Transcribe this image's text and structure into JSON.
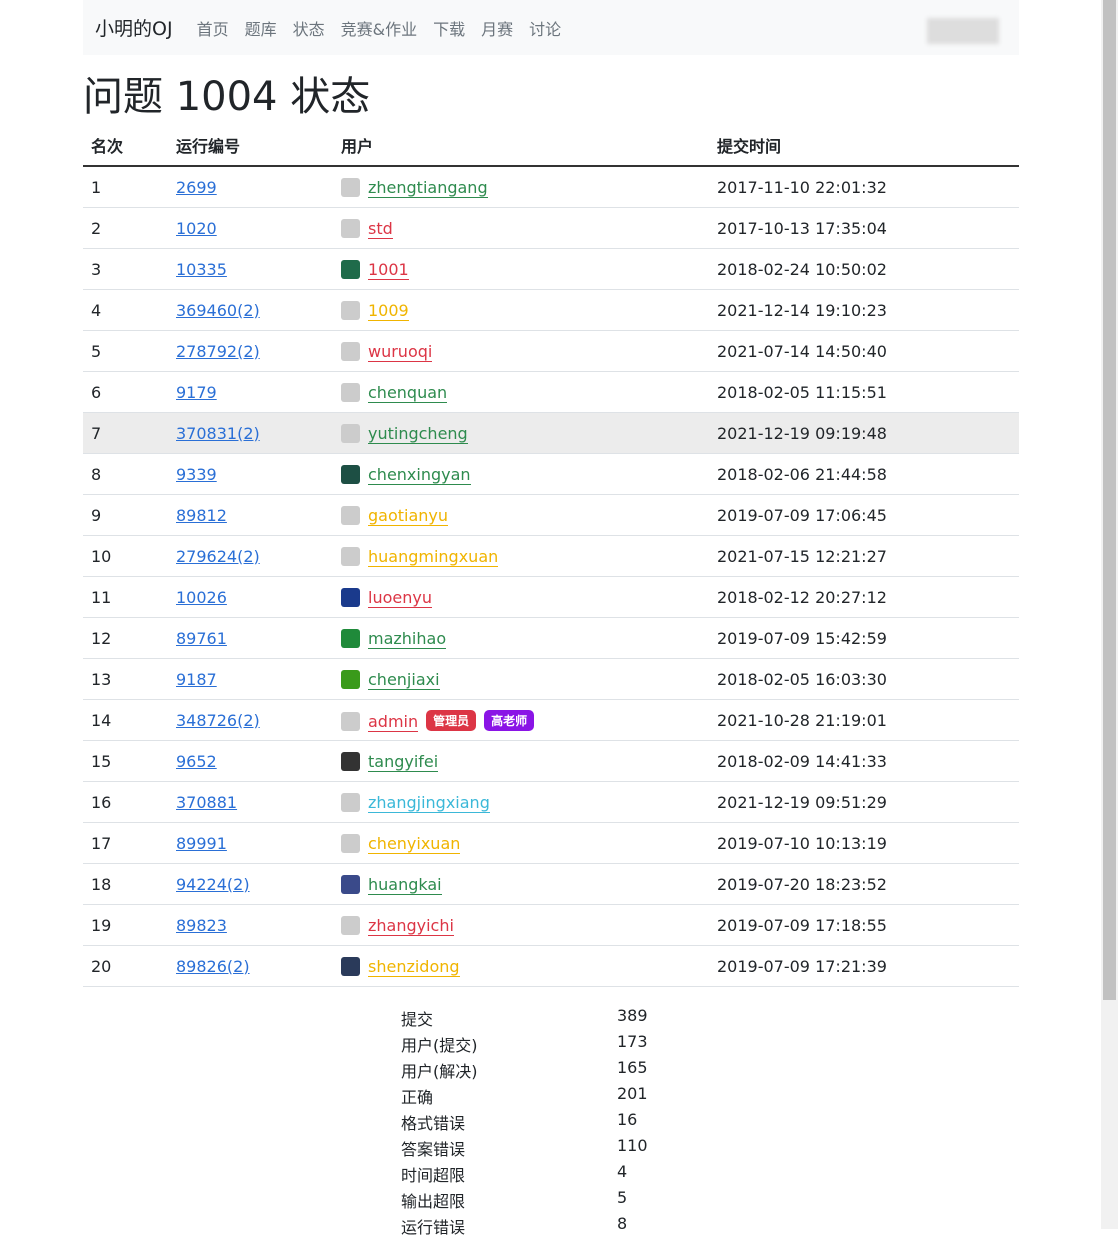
{
  "nav": {
    "brand": "小明的OJ",
    "links": [
      "首页",
      "题库",
      "状态",
      "竞赛&作业",
      "下载",
      "月赛",
      "讨论"
    ]
  },
  "title": "问题 1004 状态",
  "table": {
    "headers": [
      "名次",
      "运行编号",
      "用户",
      "提交时间"
    ],
    "rows": [
      {
        "rank": 1,
        "run": "2699",
        "user": "zhengtiangang",
        "color": "#2e8b4e",
        "avatar_color": "#cccccc",
        "time": "2017-11-10 22:01:32"
      },
      {
        "rank": 2,
        "run": "1020",
        "user": "std",
        "color": "#dc3545",
        "avatar_color": "#cccccc",
        "time": "2017-10-13 17:35:04"
      },
      {
        "rank": 3,
        "run": "10335",
        "user": "1001",
        "color": "#dc3545",
        "avatar_color": "#1f6b4a",
        "time": "2018-02-24 10:50:02"
      },
      {
        "rank": 4,
        "run": "369460(2)",
        "user": "1009",
        "color": "#f0b400",
        "avatar_color": "#cccccc",
        "time": "2021-12-14 19:10:23"
      },
      {
        "rank": 5,
        "run": "278792(2)",
        "user": "wuruoqi",
        "color": "#dc3545",
        "avatar_color": "#cccccc",
        "time": "2021-07-14 14:50:40"
      },
      {
        "rank": 6,
        "run": "9179",
        "user": "chenquan",
        "color": "#2e8b4e",
        "avatar_color": "#cccccc",
        "time": "2018-02-05 11:15:51"
      },
      {
        "rank": 7,
        "run": "370831(2)",
        "user": "yutingcheng",
        "color": "#2e8b4e",
        "avatar_color": "#cccccc",
        "time": "2021-12-19 09:19:48"
      },
      {
        "rank": 8,
        "run": "9339",
        "user": "chenxingyan",
        "color": "#2e8b4e",
        "avatar_color": "#1d4f44",
        "time": "2018-02-06 21:44:58"
      },
      {
        "rank": 9,
        "run": "89812",
        "user": "gaotianyu",
        "color": "#f0b400",
        "avatar_color": "#cccccc",
        "time": "2019-07-09 17:06:45"
      },
      {
        "rank": 10,
        "run": "279624(2)",
        "user": "huangmingxuan",
        "color": "#f0b400",
        "avatar_color": "#cccccc",
        "time": "2021-07-15 12:21:27"
      },
      {
        "rank": 11,
        "run": "10026",
        "user": "luoenyu",
        "color": "#dc3545",
        "avatar_color": "#1a3a8c",
        "time": "2018-02-12 20:27:12"
      },
      {
        "rank": 12,
        "run": "89761",
        "user": "mazhihao",
        "color": "#2e8b4e",
        "avatar_color": "#1f8a3a",
        "time": "2019-07-09 15:42:59"
      },
      {
        "rank": 13,
        "run": "9187",
        "user": "chenjiaxi",
        "color": "#2e8b4e",
        "avatar_color": "#3a9a1a",
        "time": "2018-02-05 16:03:30"
      },
      {
        "rank": 14,
        "run": "348726(2)",
        "user": "admin",
        "color": "#dc3545",
        "avatar_color": "#cccccc",
        "time": "2021-10-28 21:19:01",
        "badges": [
          {
            "text": "管理员",
            "color": "#dc3545"
          },
          {
            "text": "高老师",
            "color": "#8a14e6"
          }
        ]
      },
      {
        "rank": 15,
        "run": "9652",
        "user": "tangyifei",
        "color": "#2e8b4e",
        "avatar_color": "#333333",
        "time": "2018-02-09 14:41:33"
      },
      {
        "rank": 16,
        "run": "370881",
        "user": "zhangjingxiang",
        "color": "#3bb8d8",
        "avatar_color": "#cccccc",
        "time": "2021-12-19 09:51:29"
      },
      {
        "rank": 17,
        "run": "89991",
        "user": "chenyixuan",
        "color": "#f0b400",
        "avatar_color": "#cccccc",
        "time": "2019-07-10 10:13:19"
      },
      {
        "rank": 18,
        "run": "94224(2)",
        "user": "huangkai",
        "color": "#2e8b4e",
        "avatar_color": "#3a4a8a",
        "time": "2019-07-20 18:23:52"
      },
      {
        "rank": 19,
        "run": "89823",
        "user": "zhangyichi",
        "color": "#dc3545",
        "avatar_color": "#cccccc",
        "time": "2019-07-09 17:18:55"
      },
      {
        "rank": 20,
        "run": "89826(2)",
        "user": "shenzidong",
        "color": "#f0b400",
        "avatar_color": "#2a3a5a",
        "time": "2019-07-09 17:21:39"
      }
    ]
  },
  "stats": [
    {
      "label": "提交",
      "value": 389
    },
    {
      "label": "用户(提交)",
      "value": 173
    },
    {
      "label": "用户(解决)",
      "value": 165
    },
    {
      "label": "正确",
      "value": 201
    },
    {
      "label": "格式错误",
      "value": 16
    },
    {
      "label": "答案错误",
      "value": 110
    },
    {
      "label": "时间超限",
      "value": 4
    },
    {
      "label": "输出超限",
      "value": 5
    },
    {
      "label": "运行错误",
      "value": 8
    }
  ]
}
